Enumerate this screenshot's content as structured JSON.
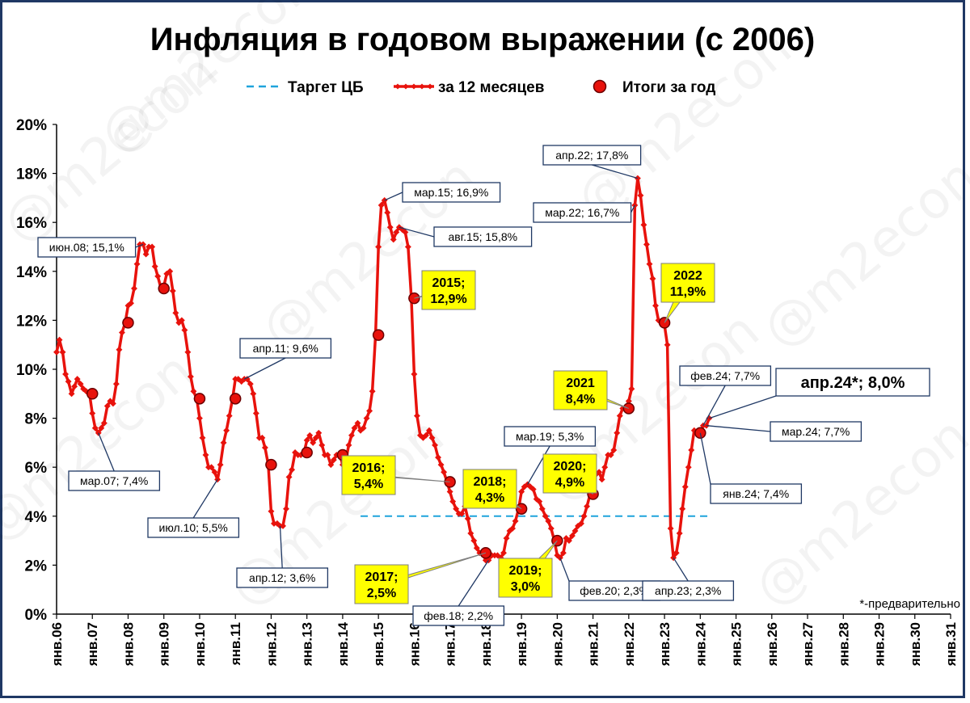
{
  "watermark": "@m2econ",
  "footnote": "*-предварительно",
  "chart_data": {
    "type": "line",
    "title": "Инфляция в годовом выражении (с 2006)",
    "legend": [
      {
        "name": "Таргет ЦБ",
        "style": "dashed",
        "color": "#1fa3dc"
      },
      {
        "name": "за 12 месяцев",
        "style": "line-markers",
        "color": "#e8120c"
      },
      {
        "name": "Итоги за год",
        "style": "marker",
        "color": "#e8120c"
      }
    ],
    "ylim": [
      0,
      20
    ],
    "yticks": [
      "0%",
      "2%",
      "4%",
      "6%",
      "8%",
      "10%",
      "12%",
      "14%",
      "16%",
      "18%",
      "20%"
    ],
    "xlim": [
      2006,
      2031
    ],
    "xticks": [
      "янв.06",
      "янв.07",
      "янв.08",
      "янв.09",
      "янв.10",
      "янв.11",
      "янв.12",
      "янв.13",
      "янв.14",
      "янв.15",
      "янв.16",
      "янв.17",
      "янв.18",
      "янв.19",
      "янв.20",
      "янв.21",
      "янв.22",
      "янв.23",
      "янв.24",
      "янв.25",
      "янв.26",
      "янв.27",
      "янв.28",
      "янв.29",
      "янв.30",
      "янв.31"
    ],
    "target": {
      "value": 4.0,
      "from": 2014.5,
      "to": 2024.25
    },
    "series": [
      {
        "name": "за 12 месяцев",
        "x": [
          2006.0,
          2006.08,
          2006.17,
          2006.25,
          2006.33,
          2006.42,
          2006.5,
          2006.58,
          2006.67,
          2006.75,
          2006.83,
          2006.92,
          2007.0,
          2007.08,
          2007.17,
          2007.25,
          2007.33,
          2007.42,
          2007.5,
          2007.58,
          2007.67,
          2007.75,
          2007.83,
          2007.92,
          2008.0,
          2008.08,
          2008.17,
          2008.25,
          2008.33,
          2008.42,
          2008.5,
          2008.58,
          2008.67,
          2008.75,
          2008.83,
          2008.92,
          2009.0,
          2009.08,
          2009.17,
          2009.25,
          2009.33,
          2009.42,
          2009.5,
          2009.58,
          2009.67,
          2009.75,
          2009.83,
          2009.92,
          2010.0,
          2010.08,
          2010.17,
          2010.25,
          2010.33,
          2010.42,
          2010.5,
          2010.58,
          2010.67,
          2010.75,
          2010.83,
          2010.92,
          2011.0,
          2011.08,
          2011.17,
          2011.25,
          2011.33,
          2011.42,
          2011.5,
          2011.58,
          2011.67,
          2011.75,
          2011.83,
          2011.92,
          2012.0,
          2012.08,
          2012.17,
          2012.25,
          2012.33,
          2012.42,
          2012.5,
          2012.58,
          2012.67,
          2012.75,
          2012.83,
          2012.92,
          2013.0,
          2013.08,
          2013.17,
          2013.25,
          2013.33,
          2013.42,
          2013.5,
          2013.58,
          2013.67,
          2013.75,
          2013.83,
          2013.92,
          2014.0,
          2014.08,
          2014.17,
          2014.25,
          2014.33,
          2014.42,
          2014.5,
          2014.58,
          2014.67,
          2014.75,
          2014.83,
          2014.92,
          2015.0,
          2015.08,
          2015.17,
          2015.25,
          2015.33,
          2015.42,
          2015.5,
          2015.58,
          2015.67,
          2015.75,
          2015.83,
          2015.92,
          2016.0,
          2016.08,
          2016.17,
          2016.25,
          2016.33,
          2016.42,
          2016.5,
          2016.58,
          2016.67,
          2016.75,
          2016.83,
          2016.92,
          2017.0,
          2017.08,
          2017.17,
          2017.25,
          2017.33,
          2017.42,
          2017.5,
          2017.58,
          2017.67,
          2017.75,
          2017.83,
          2017.92,
          2018.0,
          2018.08,
          2018.17,
          2018.25,
          2018.33,
          2018.42,
          2018.5,
          2018.58,
          2018.67,
          2018.75,
          2018.83,
          2018.92,
          2019.0,
          2019.08,
          2019.17,
          2019.25,
          2019.33,
          2019.42,
          2019.5,
          2019.58,
          2019.67,
          2019.75,
          2019.83,
          2019.92,
          2020.0,
          2020.08,
          2020.17,
          2020.25,
          2020.33,
          2020.42,
          2020.5,
          2020.58,
          2020.67,
          2020.75,
          2020.83,
          2020.92,
          2021.0,
          2021.08,
          2021.17,
          2021.25,
          2021.33,
          2021.42,
          2021.5,
          2021.58,
          2021.67,
          2021.75,
          2021.83,
          2021.92,
          2022.0,
          2022.08,
          2022.17,
          2022.25,
          2022.33,
          2022.42,
          2022.5,
          2022.58,
          2022.67,
          2022.75,
          2022.83,
          2022.92,
          2023.0,
          2023.08,
          2023.17,
          2023.25,
          2023.33,
          2023.42,
          2023.5,
          2023.58,
          2023.67,
          2023.75,
          2023.83,
          2023.92,
          2024.0,
          2024.08,
          2024.17,
          2024.25
        ],
        "y": [
          10.7,
          11.2,
          10.7,
          9.8,
          9.5,
          9.0,
          9.3,
          9.6,
          9.4,
          9.2,
          9.1,
          9.0,
          8.2,
          7.6,
          7.4,
          7.6,
          7.8,
          8.5,
          8.7,
          8.6,
          9.4,
          10.8,
          11.5,
          11.9,
          12.6,
          12.7,
          13.3,
          14.3,
          15.1,
          15.1,
          14.7,
          15.0,
          15.0,
          14.2,
          13.8,
          13.3,
          13.4,
          13.9,
          14.0,
          13.2,
          12.3,
          11.9,
          12.0,
          11.6,
          10.7,
          9.7,
          9.1,
          8.8,
          8.0,
          7.2,
          6.5,
          6.0,
          6.0,
          5.8,
          5.5,
          6.1,
          7.0,
          7.5,
          8.1,
          8.8,
          9.6,
          9.6,
          9.5,
          9.6,
          9.6,
          9.4,
          9.0,
          8.2,
          7.2,
          7.2,
          6.8,
          6.1,
          4.2,
          3.7,
          3.7,
          3.6,
          3.6,
          4.3,
          5.6,
          5.9,
          6.6,
          6.5,
          6.5,
          6.6,
          7.1,
          7.3,
          7.0,
          7.2,
          7.4,
          6.9,
          6.5,
          6.5,
          6.1,
          6.3,
          6.5,
          6.5,
          6.1,
          6.2,
          6.9,
          7.3,
          7.6,
          7.8,
          7.5,
          7.6,
          8.0,
          8.3,
          9.1,
          11.4,
          15.0,
          16.7,
          16.9,
          16.4,
          15.8,
          15.3,
          15.6,
          15.8,
          15.7,
          15.6,
          15.0,
          12.9,
          9.8,
          8.1,
          7.3,
          7.2,
          7.3,
          7.5,
          7.2,
          6.9,
          6.4,
          6.1,
          5.8,
          5.4,
          5.0,
          4.6,
          4.3,
          4.1,
          4.1,
          4.4,
          3.9,
          3.3,
          3.0,
          2.7,
          2.5,
          2.5,
          2.2,
          2.2,
          2.4,
          2.4,
          2.4,
          2.3,
          2.5,
          3.1,
          3.4,
          3.5,
          3.8,
          4.3,
          5.0,
          5.2,
          5.3,
          5.2,
          5.1,
          4.7,
          4.6,
          4.3,
          4.0,
          3.8,
          3.5,
          3.0,
          2.4,
          2.3,
          2.5,
          3.1,
          3.0,
          3.2,
          3.4,
          3.6,
          3.7,
          4.0,
          4.4,
          4.9,
          5.2,
          5.7,
          5.8,
          5.5,
          6.0,
          6.5,
          6.5,
          6.7,
          7.4,
          8.1,
          8.4,
          8.4,
          8.7,
          9.2,
          16.7,
          17.8,
          17.1,
          15.9,
          15.1,
          14.3,
          13.7,
          12.6,
          12.0,
          11.9,
          11.8,
          11.0,
          3.5,
          2.3,
          2.5,
          3.3,
          4.3,
          5.2,
          6.0,
          6.7,
          7.5,
          7.4,
          7.4,
          7.7,
          7.7,
          8.0
        ]
      },
      {
        "name": "Итоги за год",
        "x": [
          2007.0,
          2008.0,
          2009.0,
          2010.0,
          2011.0,
          2012.0,
          2013.0,
          2014.0,
          2015.0,
          2016.0,
          2017.0,
          2018.0,
          2019.0,
          2020.0,
          2021.0,
          2022.0,
          2023.0,
          2024.0
        ],
        "y": [
          9.0,
          11.9,
          13.3,
          8.8,
          8.8,
          6.1,
          6.6,
          6.5,
          11.4,
          12.9,
          5.4,
          2.5,
          4.3,
          3.0,
          4.9,
          8.4,
          11.9,
          7.4
        ]
      }
    ],
    "annotations": [
      {
        "text": "мар.07; 7,4%",
        "x": 2007.17,
        "y": 7.4,
        "style": "box"
      },
      {
        "text": "июн.08; 15,1%",
        "x": 2008.42,
        "y": 15.1,
        "style": "box"
      },
      {
        "text": "июл.10; 5,5%",
        "x": 2010.5,
        "y": 5.5,
        "style": "box"
      },
      {
        "text": "апр.11; 9,6%",
        "x": 2011.25,
        "y": 9.6,
        "style": "box"
      },
      {
        "text": "апр.12; 3,6%",
        "x": 2012.25,
        "y": 3.6,
        "style": "box"
      },
      {
        "text": "мар.15; 16,9%",
        "x": 2015.17,
        "y": 16.9,
        "style": "box"
      },
      {
        "text": "авг.15; 15,8%",
        "x": 2015.58,
        "y": 15.8,
        "style": "box"
      },
      {
        "text": "фев.18; 2,2%",
        "x": 2018.08,
        "y": 2.2,
        "style": "box"
      },
      {
        "text": "мар.19; 5,3%",
        "x": 2019.17,
        "y": 5.3,
        "style": "box"
      },
      {
        "text": "фев.20; 2,3%",
        "x": 2020.08,
        "y": 2.3,
        "style": "box"
      },
      {
        "text": "апр.22; 17,8%",
        "x": 2022.25,
        "y": 17.8,
        "style": "box"
      },
      {
        "text": "мар.22; 16,7%",
        "x": 2022.17,
        "y": 16.7,
        "style": "box"
      },
      {
        "text": "апр.23; 2,3%",
        "x": 2023.25,
        "y": 2.3,
        "style": "box"
      },
      {
        "text": "фев.24; 7,7%",
        "x": 2024.08,
        "y": 7.7,
        "style": "box"
      },
      {
        "text": "мар.24; 7,7%",
        "x": 2024.17,
        "y": 7.7,
        "style": "box"
      },
      {
        "text": "янв.24; 7,4%",
        "x": 2024.0,
        "y": 7.4,
        "style": "box"
      },
      {
        "text": "апр.24*; 8,0%",
        "x": 2024.25,
        "y": 8.0,
        "style": "box-big"
      },
      {
        "lines": [
          "2015;",
          "12,9%"
        ],
        "x": 2016.0,
        "y": 12.9,
        "style": "yellow"
      },
      {
        "lines": [
          "2016;",
          "5,4%"
        ],
        "x": 2017.0,
        "y": 5.4,
        "style": "yellow"
      },
      {
        "lines": [
          "2017;",
          "2,5%"
        ],
        "x": 2018.0,
        "y": 2.5,
        "style": "yellow"
      },
      {
        "lines": [
          "2018;",
          "4,3%"
        ],
        "x": 2019.0,
        "y": 4.3,
        "style": "yellow"
      },
      {
        "lines": [
          "2019;",
          "3,0%"
        ],
        "x": 2020.0,
        "y": 3.0,
        "style": "yellow"
      },
      {
        "lines": [
          "2020;",
          "4,9%"
        ],
        "x": 2021.0,
        "y": 4.9,
        "style": "yellow"
      },
      {
        "lines": [
          "2021",
          "8,4%"
        ],
        "x": 2022.0,
        "y": 8.4,
        "style": "yellow"
      },
      {
        "lines": [
          "2022",
          "11,9%"
        ],
        "x": 2023.0,
        "y": 11.9,
        "style": "yellow"
      }
    ],
    "grid": false,
    "legend_position": "top-center"
  }
}
